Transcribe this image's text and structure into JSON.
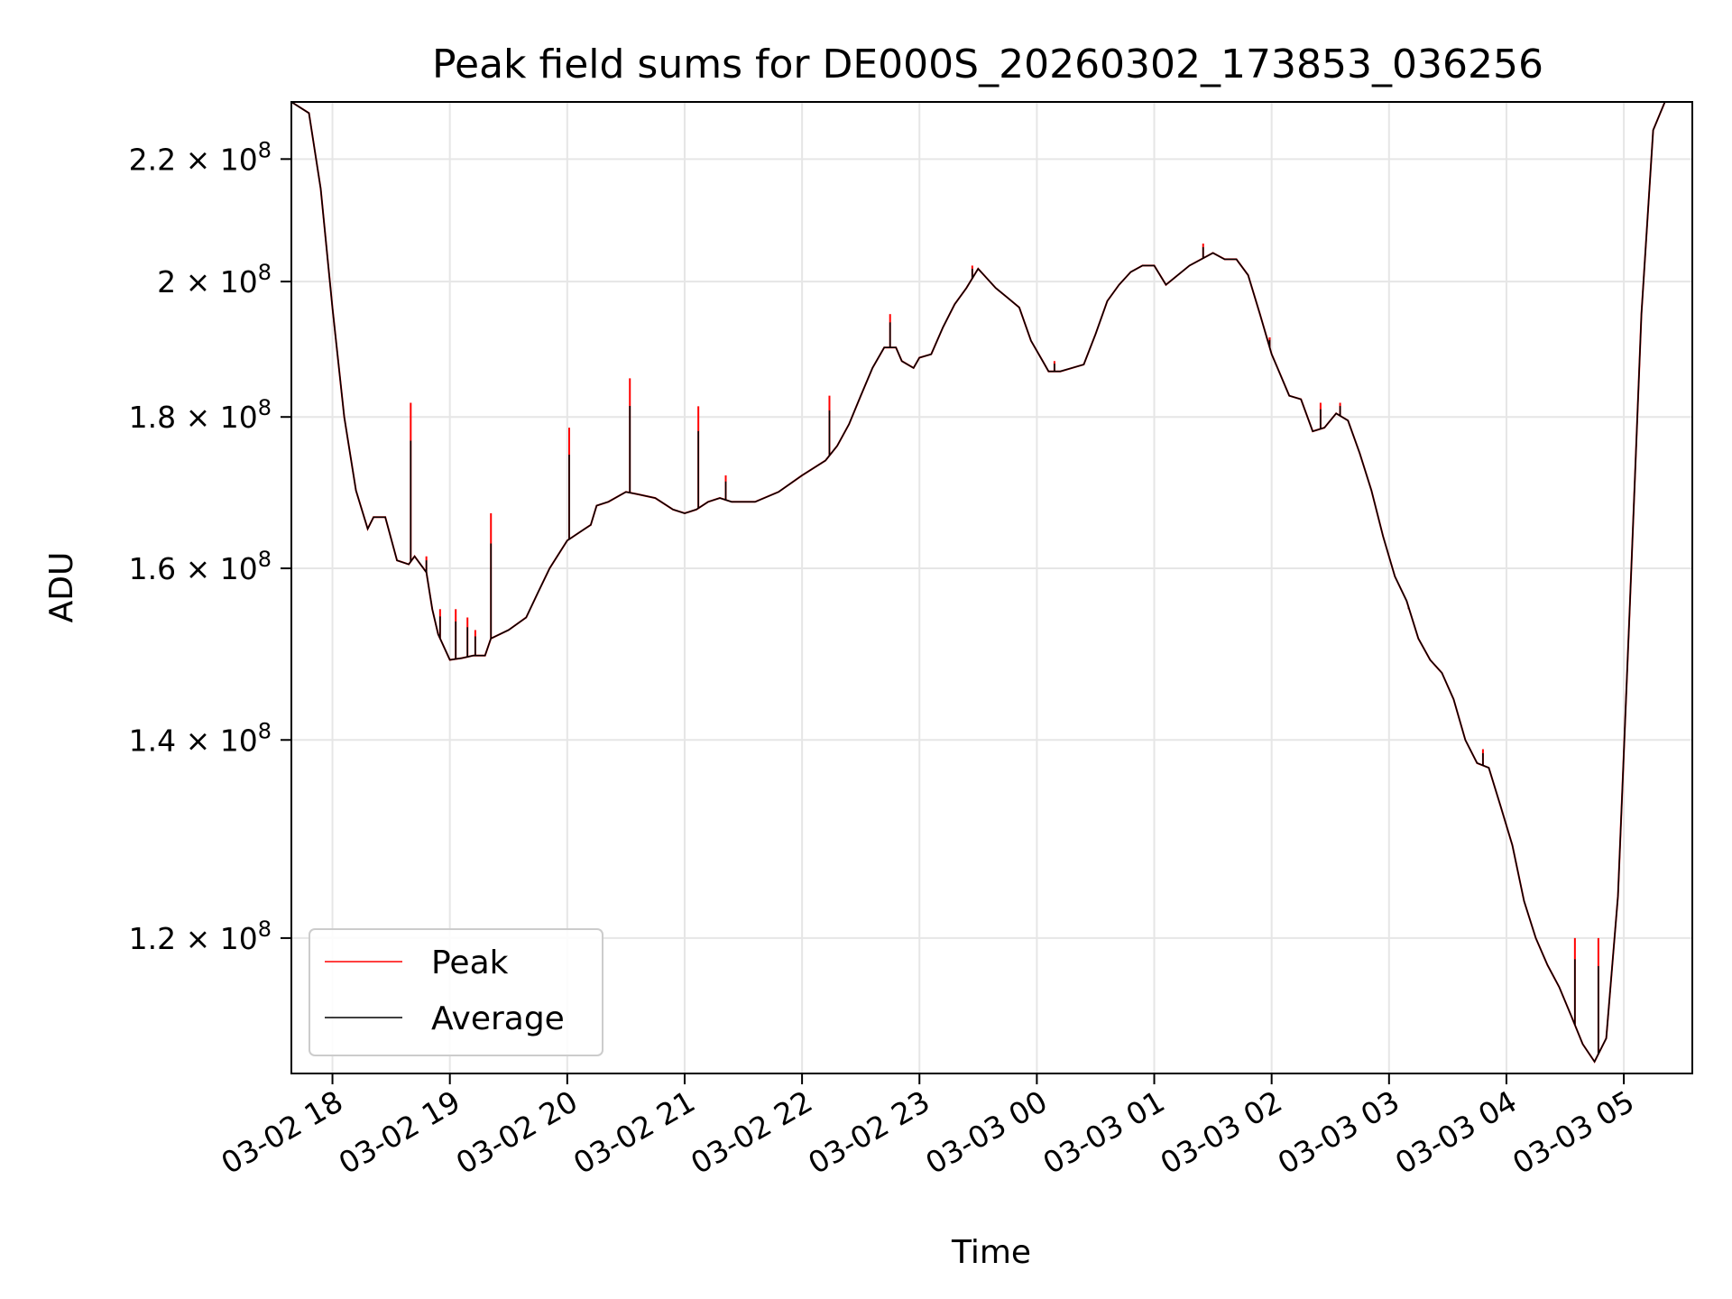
{
  "chart_data": {
    "type": "line",
    "title": "Peak field sums for DE000S_20260302_173853_036256",
    "xlabel": "Time",
    "ylabel": "ADU",
    "yscale": "log",
    "ylim": [
      108000000,
      230000000
    ],
    "xlim": [
      "2026-03-02T17:39",
      "2026-03-03T05:35"
    ],
    "grid": true,
    "legend_position": "lower-left",
    "x_ticks": [
      "03-02 18",
      "03-02 19",
      "03-02 20",
      "03-02 21",
      "03-02 22",
      "03-02 23",
      "03-03 00",
      "03-03 01",
      "03-03 02",
      "03-03 03",
      "03-03 04",
      "03-03 05"
    ],
    "x_tick_times": [
      "2026-03-02T18:00",
      "2026-03-02T19:00",
      "2026-03-02T20:00",
      "2026-03-02T21:00",
      "2026-03-02T22:00",
      "2026-03-02T23:00",
      "2026-03-03T00:00",
      "2026-03-03T01:00",
      "2026-03-03T02:00",
      "2026-03-03T03:00",
      "2026-03-03T04:00",
      "2026-03-03T05:00"
    ],
    "y_ticks": [
      {
        "value": 120000000,
        "mantissa": "1.2",
        "base": "10",
        "exp": "8"
      },
      {
        "value": 140000000,
        "mantissa": "1.4",
        "base": "10",
        "exp": "8"
      },
      {
        "value": 160000000,
        "mantissa": "1.6",
        "base": "10",
        "exp": "8"
      },
      {
        "value": 180000000,
        "mantissa": "1.8",
        "base": "10",
        "exp": "8"
      },
      {
        "value": 200000000,
        "mantissa": "2",
        "base": "10",
        "exp": "8"
      },
      {
        "value": 220000000,
        "mantissa": "2.2",
        "base": "10",
        "exp": "8"
      }
    ],
    "times_multiplication_sign": "×",
    "series": [
      {
        "name": "Average",
        "color": "#000000",
        "points": [
          [
            "2026-03-02T17:39",
            230000000
          ],
          [
            "2026-03-02T17:48",
            228000000
          ],
          [
            "2026-03-02T17:54",
            215000000
          ],
          [
            "2026-03-02T18:00",
            196000000
          ],
          [
            "2026-03-02T18:06",
            180000000
          ],
          [
            "2026-03-02T18:12",
            170000000
          ],
          [
            "2026-03-02T18:18",
            165000000
          ],
          [
            "2026-03-02T18:21",
            166500000
          ],
          [
            "2026-03-02T18:27",
            166500000
          ],
          [
            "2026-03-02T18:33",
            161000000
          ],
          [
            "2026-03-02T18:39",
            160500000
          ],
          [
            "2026-03-02T18:42",
            161500000
          ],
          [
            "2026-03-02T18:48",
            159500000
          ],
          [
            "2026-03-02T18:51",
            155000000
          ],
          [
            "2026-03-02T18:54",
            152000000
          ],
          [
            "2026-03-02T19:00",
            149000000
          ],
          [
            "2026-03-02T19:06",
            149200000
          ],
          [
            "2026-03-02T19:12",
            149500000
          ],
          [
            "2026-03-02T19:18",
            149500000
          ],
          [
            "2026-03-02T19:21",
            151500000
          ],
          [
            "2026-03-02T19:30",
            152500000
          ],
          [
            "2026-03-02T19:39",
            154000000
          ],
          [
            "2026-03-02T19:45",
            157000000
          ],
          [
            "2026-03-02T19:51",
            160000000
          ],
          [
            "2026-03-02T20:00",
            163500000
          ],
          [
            "2026-03-02T20:09",
            165000000
          ],
          [
            "2026-03-02T20:12",
            165500000
          ],
          [
            "2026-03-02T20:15",
            168000000
          ],
          [
            "2026-03-02T20:21",
            168500000
          ],
          [
            "2026-03-02T20:30",
            169800000
          ],
          [
            "2026-03-02T20:36",
            169500000
          ],
          [
            "2026-03-02T20:45",
            169000000
          ],
          [
            "2026-03-02T20:54",
            167500000
          ],
          [
            "2026-03-02T21:00",
            167000000
          ],
          [
            "2026-03-02T21:06",
            167500000
          ],
          [
            "2026-03-02T21:12",
            168500000
          ],
          [
            "2026-03-02T21:18",
            169000000
          ],
          [
            "2026-03-02T21:24",
            168500000
          ],
          [
            "2026-03-02T21:36",
            168500000
          ],
          [
            "2026-03-02T21:48",
            169800000
          ],
          [
            "2026-03-02T22:00",
            172000000
          ],
          [
            "2026-03-02T22:12",
            174000000
          ],
          [
            "2026-03-02T22:18",
            176000000
          ],
          [
            "2026-03-02T22:24",
            179000000
          ],
          [
            "2026-03-02T22:30",
            183000000
          ],
          [
            "2026-03-02T22:36",
            187000000
          ],
          [
            "2026-03-02T22:42",
            190000000
          ],
          [
            "2026-03-02T22:48",
            190000000
          ],
          [
            "2026-03-02T22:51",
            188000000
          ],
          [
            "2026-03-02T22:57",
            187000000
          ],
          [
            "2026-03-02T23:00",
            188500000
          ],
          [
            "2026-03-02T23:06",
            189000000
          ],
          [
            "2026-03-02T23:12",
            193000000
          ],
          [
            "2026-03-02T23:18",
            196500000
          ],
          [
            "2026-03-02T23:24",
            199000000
          ],
          [
            "2026-03-02T23:30",
            202000000
          ],
          [
            "2026-03-02T23:33",
            201000000
          ],
          [
            "2026-03-02T23:39",
            199000000
          ],
          [
            "2026-03-02T23:45",
            197500000
          ],
          [
            "2026-03-02T23:51",
            196000000
          ],
          [
            "2026-03-02T23:57",
            191000000
          ],
          [
            "2026-03-03T00:03",
            188000000
          ],
          [
            "2026-03-03T00:06",
            186500000
          ],
          [
            "2026-03-03T00:12",
            186500000
          ],
          [
            "2026-03-03T00:18",
            187000000
          ],
          [
            "2026-03-03T00:24",
            187500000
          ],
          [
            "2026-03-03T00:30",
            192000000
          ],
          [
            "2026-03-03T00:36",
            197000000
          ],
          [
            "2026-03-03T00:42",
            199500000
          ],
          [
            "2026-03-03T00:48",
            201500000
          ],
          [
            "2026-03-03T00:54",
            202500000
          ],
          [
            "2026-03-03T01:00",
            202500000
          ],
          [
            "2026-03-03T01:06",
            199500000
          ],
          [
            "2026-03-03T01:12",
            201000000
          ],
          [
            "2026-03-03T01:18",
            202500000
          ],
          [
            "2026-03-03T01:24",
            203500000
          ],
          [
            "2026-03-03T01:30",
            204500000
          ],
          [
            "2026-03-03T01:36",
            203500000
          ],
          [
            "2026-03-03T01:42",
            203500000
          ],
          [
            "2026-03-03T01:48",
            201000000
          ],
          [
            "2026-03-03T01:54",
            195000000
          ],
          [
            "2026-03-03T02:00",
            189000000
          ],
          [
            "2026-03-03T02:03",
            187000000
          ],
          [
            "2026-03-03T02:09",
            183000000
          ],
          [
            "2026-03-03T02:15",
            182500000
          ],
          [
            "2026-03-03T02:21",
            178000000
          ],
          [
            "2026-03-03T02:27",
            178500000
          ],
          [
            "2026-03-03T02:33",
            180500000
          ],
          [
            "2026-03-03T02:39",
            179500000
          ],
          [
            "2026-03-03T02:45",
            175000000
          ],
          [
            "2026-03-03T02:51",
            170000000
          ],
          [
            "2026-03-03T02:57",
            164000000
          ],
          [
            "2026-03-03T03:03",
            159000000
          ],
          [
            "2026-03-03T03:09",
            156000000
          ],
          [
            "2026-03-03T03:15",
            151500000
          ],
          [
            "2026-03-03T03:21",
            149000000
          ],
          [
            "2026-03-03T03:27",
            147500000
          ],
          [
            "2026-03-03T03:33",
            144500000
          ],
          [
            "2026-03-03T03:39",
            140000000
          ],
          [
            "2026-03-03T03:45",
            137500000
          ],
          [
            "2026-03-03T03:51",
            137000000
          ],
          [
            "2026-03-03T03:57",
            133000000
          ],
          [
            "2026-03-03T04:03",
            129000000
          ],
          [
            "2026-03-03T04:09",
            123500000
          ],
          [
            "2026-03-03T04:15",
            120000000
          ],
          [
            "2026-03-03T04:21",
            117500000
          ],
          [
            "2026-03-03T04:27",
            115500000
          ],
          [
            "2026-03-03T04:33",
            113000000
          ],
          [
            "2026-03-03T04:39",
            110500000
          ],
          [
            "2026-03-03T04:45",
            109000000
          ],
          [
            "2026-03-03T04:51",
            111000000
          ],
          [
            "2026-03-03T04:57",
            124000000
          ],
          [
            "2026-03-03T05:03",
            155000000
          ],
          [
            "2026-03-03T05:09",
            195000000
          ],
          [
            "2026-03-03T05:15",
            225000000
          ],
          [
            "2026-03-03T05:21",
            230000000
          ],
          [
            "2026-03-03T05:35",
            230000000
          ]
        ]
      },
      {
        "name": "Peak",
        "color": "#ff0000",
        "spikes": [
          [
            "2026-03-02T18:40",
            182000000
          ],
          [
            "2026-03-02T18:48",
            161500000
          ],
          [
            "2026-03-02T18:55",
            155000000
          ],
          [
            "2026-03-02T19:03",
            155000000
          ],
          [
            "2026-03-02T19:09",
            154000000
          ],
          [
            "2026-03-02T19:13",
            152500000
          ],
          [
            "2026-03-02T19:21",
            167000000
          ],
          [
            "2026-03-02T20:01",
            178500000
          ],
          [
            "2026-03-02T20:32",
            185500000
          ],
          [
            "2026-03-02T21:07",
            181500000
          ],
          [
            "2026-03-02T21:21",
            172000000
          ],
          [
            "2026-03-02T22:14",
            183000000
          ],
          [
            "2026-03-02T22:45",
            195000000
          ],
          [
            "2026-03-02T23:27",
            202500000
          ],
          [
            "2026-03-03T00:09",
            188000000
          ],
          [
            "2026-03-03T01:25",
            206000000
          ],
          [
            "2026-03-03T01:59",
            191500000
          ],
          [
            "2026-03-03T02:25",
            182000000
          ],
          [
            "2026-03-03T02:35",
            182000000
          ],
          [
            "2026-03-03T03:10",
            155000000
          ],
          [
            "2026-03-03T03:48",
            139000000
          ],
          [
            "2026-03-03T04:35",
            120000000
          ],
          [
            "2026-03-03T04:47",
            120000000
          ]
        ]
      }
    ]
  }
}
